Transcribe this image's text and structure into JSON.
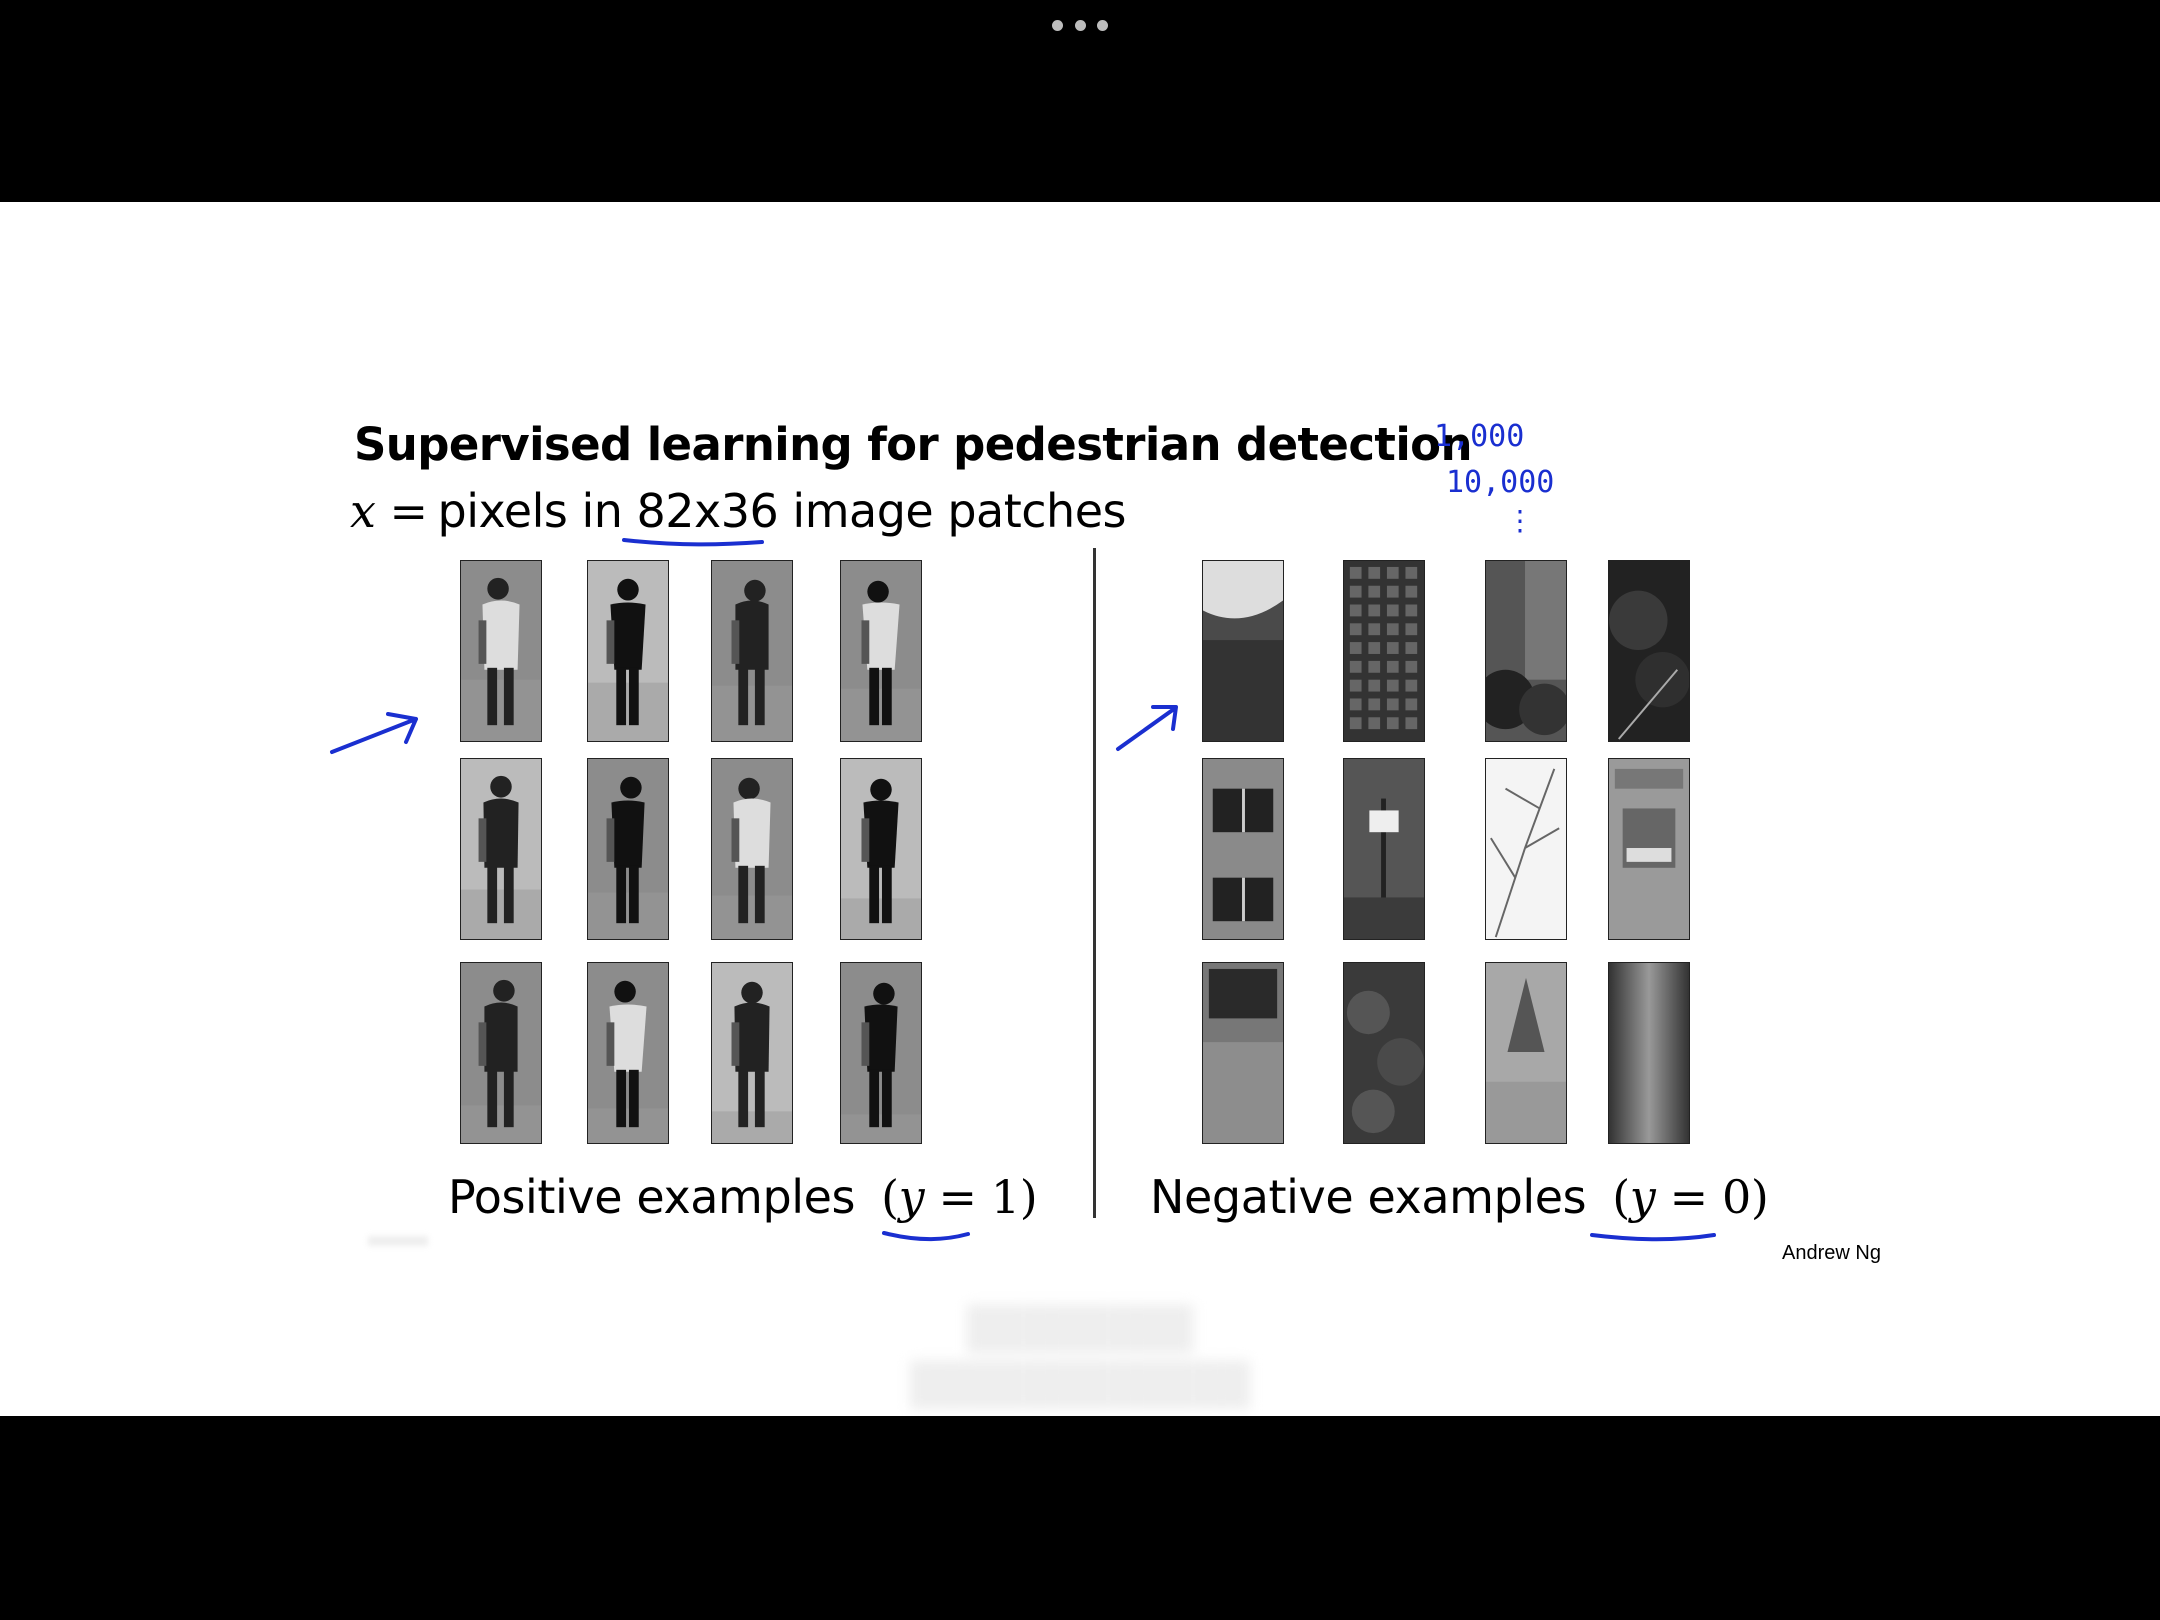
{
  "slide": {
    "title": "Supervised learning for pedestrian detection",
    "subtitle_var": "x",
    "subtitle_eq": "=",
    "subtitle_pre": "pixels in ",
    "subtitle_size": "82x36",
    "subtitle_post": " image patches",
    "positive_label": "Positive examples",
    "positive_math": {
      "open": "(",
      "var": "y",
      "eq": " = ",
      "val": "1",
      "close": ")"
    },
    "negative_label": "Negative examples",
    "negative_math": {
      "open": "(",
      "var": "y",
      "eq": " = ",
      "val": "0",
      "close": ")"
    },
    "author": "Andrew Ng",
    "annotations": {
      "count_1": "1,000",
      "count_2": "10,000",
      "ellipsis": "⋮"
    }
  },
  "positive_images": [
    "pedestrian-1",
    "pedestrian-2",
    "pedestrian-3",
    "pedestrian-4",
    "pedestrian-5",
    "pedestrian-6",
    "pedestrian-7",
    "pedestrian-8",
    "pedestrian-9",
    "pedestrian-10",
    "pedestrian-11",
    "pedestrian-12"
  ],
  "negative_images": [
    "awning-patch",
    "building-windows-patch",
    "building-tree-patch",
    "foliage-dark-patch",
    "facade-windows-patch",
    "street-sign-patch",
    "bare-branches-patch",
    "doorway-patch",
    "carriage-patch",
    "bush-patch",
    "foggy-trees-patch",
    "pillar-patch"
  ],
  "colors": {
    "ink": "#1a2fd0",
    "slide_bg": "#ffffff",
    "letterbox": "#000000"
  },
  "icons": {
    "more": "more-dots-icon"
  }
}
